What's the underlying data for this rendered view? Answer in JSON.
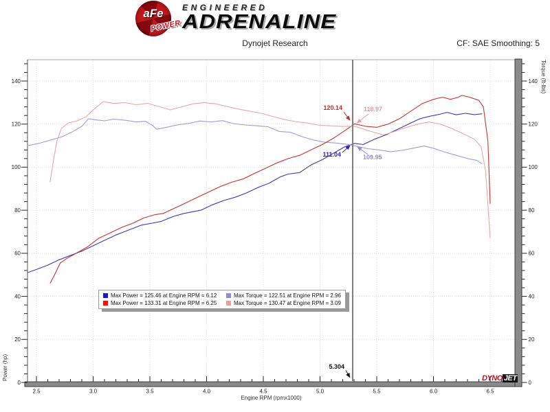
{
  "header": {
    "brand": {
      "afe": "aFe",
      "power": "POWER",
      "engineered": "ENGINEERED",
      "adrenaline": "ADRENALINE"
    },
    "title": "Dynojet Research",
    "correction_note": "CF: SAE Smoothing: 5"
  },
  "legend": {
    "items": [
      {
        "color": "#1818cf",
        "label": "Max Power = 125.46 at Engine RPM = 6.12"
      },
      {
        "color": "#8c8ce0",
        "label": "Max Torque = 122.51 at Engine RPM = 2.96"
      },
      {
        "color": "#e01818",
        "label": "Max Power = 133.31 at Engine RPM = 6.25"
      },
      {
        "color": "#f09c9c",
        "label": "Max Torque = 130.47 at Engine RPM = 3.09"
      }
    ]
  },
  "annotations": {
    "power2_value": "120.14",
    "torque2_value": "118.97",
    "power1_value": "111.04",
    "torque1_value": "109.95",
    "cursor_rpm": "5.304"
  },
  "watermark": {
    "dyno": "DYNO",
    "jet": "JET"
  },
  "chart_data": {
    "type": "line",
    "title": "Dynojet Research",
    "xlabel": "Engine RPM (rpmx1000)",
    "ylabel_left": "Power (hp)",
    "ylabel_right": "Torque (ft-lbs)",
    "xlim": [
      2.42,
      6.69
    ],
    "ylim": [
      0,
      150
    ],
    "x_ticks": [
      "2.5",
      "3.0",
      "3.5",
      "4.0",
      "4.5",
      "5.0",
      "5.5",
      "6.0",
      "6.5"
    ],
    "y_ticks": [
      "0",
      "20",
      "40",
      "60",
      "80",
      "100",
      "120",
      "140"
    ],
    "grid": "dotted",
    "cursor": {
      "rpm": 5.304,
      "power1": 111.04,
      "power2": 120.14,
      "torque1": 109.95,
      "torque2": 118.97
    },
    "series": [
      {
        "name": "power-run-1",
        "color": "#3939b8",
        "points": [
          [
            2.42,
            51
          ],
          [
            2.5,
            52.5
          ],
          [
            2.6,
            54.5
          ],
          [
            2.7,
            57
          ],
          [
            2.8,
            59
          ],
          [
            2.9,
            61
          ],
          [
            3.0,
            63.5
          ],
          [
            3.1,
            66
          ],
          [
            3.2,
            68.5
          ],
          [
            3.3,
            70.5
          ],
          [
            3.42,
            73
          ],
          [
            3.52,
            74
          ],
          [
            3.6,
            74.8
          ],
          [
            3.7,
            77
          ],
          [
            3.8,
            78.5
          ],
          [
            3.88,
            79.3
          ],
          [
            3.95,
            80
          ],
          [
            4.05,
            82.5
          ],
          [
            4.15,
            84.5
          ],
          [
            4.25,
            86
          ],
          [
            4.35,
            88
          ],
          [
            4.45,
            90.5
          ],
          [
            4.55,
            92.5
          ],
          [
            4.65,
            95.5
          ],
          [
            4.72,
            96.8
          ],
          [
            4.82,
            97.5
          ],
          [
            4.92,
            101
          ],
          [
            5.02,
            103.5
          ],
          [
            5.12,
            106.5
          ],
          [
            5.22,
            109.5
          ],
          [
            5.304,
            111.04
          ],
          [
            5.38,
            110.5
          ],
          [
            5.48,
            113
          ],
          [
            5.58,
            115
          ],
          [
            5.68,
            117.5
          ],
          [
            5.78,
            120
          ],
          [
            5.88,
            122.5
          ],
          [
            5.98,
            123.8
          ],
          [
            6.05,
            124.5
          ],
          [
            6.12,
            125.46
          ],
          [
            6.2,
            124.3
          ],
          [
            6.28,
            125
          ],
          [
            6.36,
            124.4
          ],
          [
            6.43,
            124.8
          ]
        ]
      },
      {
        "name": "torque-run-1",
        "color": "#9c9cdc",
        "points": [
          [
            2.42,
            110
          ],
          [
            2.52,
            111
          ],
          [
            2.62,
            112.5
          ],
          [
            2.72,
            114
          ],
          [
            2.82,
            116.5
          ],
          [
            2.9,
            119
          ],
          [
            2.96,
            122.5
          ],
          [
            3.02,
            122
          ],
          [
            3.1,
            121.5
          ],
          [
            3.18,
            122.3
          ],
          [
            3.28,
            121.8
          ],
          [
            3.38,
            121
          ],
          [
            3.46,
            121.3
          ],
          [
            3.52,
            119.5
          ],
          [
            3.56,
            117.6
          ],
          [
            3.64,
            118.4
          ],
          [
            3.74,
            119.6
          ],
          [
            3.84,
            120.3
          ],
          [
            3.94,
            121.4
          ],
          [
            4.04,
            121
          ],
          [
            4.14,
            121.6
          ],
          [
            4.24,
            120.2
          ],
          [
            4.34,
            119.6
          ],
          [
            4.44,
            119.2
          ],
          [
            4.54,
            118.8
          ],
          [
            4.64,
            116.6
          ],
          [
            4.74,
            116.2
          ],
          [
            4.84,
            114.2
          ],
          [
            4.94,
            112.6
          ],
          [
            5.04,
            111.6
          ],
          [
            5.14,
            111.2
          ],
          [
            5.24,
            110.6
          ],
          [
            5.304,
            109.95
          ],
          [
            5.42,
            108.6
          ],
          [
            5.52,
            108
          ],
          [
            5.62,
            107.2
          ],
          [
            5.72,
            107.8
          ],
          [
            5.82,
            108.8
          ],
          [
            5.92,
            109.8
          ],
          [
            6.0,
            108.8
          ],
          [
            6.1,
            107
          ],
          [
            6.2,
            105.5
          ],
          [
            6.3,
            104
          ],
          [
            6.38,
            103.2
          ],
          [
            6.43,
            101.5
          ]
        ]
      },
      {
        "name": "power-run-2",
        "color": "#c83232",
        "points": [
          [
            2.62,
            46
          ],
          [
            2.66,
            50
          ],
          [
            2.71,
            55.5
          ],
          [
            2.78,
            58
          ],
          [
            2.85,
            60
          ],
          [
            2.95,
            63
          ],
          [
            3.05,
            67
          ],
          [
            3.15,
            69.5
          ],
          [
            3.25,
            72
          ],
          [
            3.35,
            74
          ],
          [
            3.45,
            76.5
          ],
          [
            3.55,
            78
          ],
          [
            3.62,
            78.5
          ],
          [
            3.72,
            81
          ],
          [
            3.82,
            83.5
          ],
          [
            3.92,
            86
          ],
          [
            4.02,
            88.5
          ],
          [
            4.12,
            91
          ],
          [
            4.22,
            93
          ],
          [
            4.32,
            94.5
          ],
          [
            4.42,
            97
          ],
          [
            4.52,
            99.5
          ],
          [
            4.62,
            102
          ],
          [
            4.72,
            104
          ],
          [
            4.82,
            105.5
          ],
          [
            4.92,
            108
          ],
          [
            5.02,
            110.5
          ],
          [
            5.12,
            113.5
          ],
          [
            5.22,
            117
          ],
          [
            5.304,
            120.14
          ],
          [
            5.4,
            119
          ],
          [
            5.5,
            118.5
          ],
          [
            5.6,
            120
          ],
          [
            5.7,
            122.5
          ],
          [
            5.8,
            126
          ],
          [
            5.9,
            129.5
          ],
          [
            6.0,
            131.5
          ],
          [
            6.08,
            132.5
          ],
          [
            6.15,
            131.5
          ],
          [
            6.22,
            132.5
          ],
          [
            6.25,
            133.31
          ],
          [
            6.32,
            132.5
          ],
          [
            6.4,
            131
          ],
          [
            6.44,
            128
          ],
          [
            6.48,
            112
          ],
          [
            6.5,
            83
          ]
        ]
      },
      {
        "name": "torque-run-2",
        "color": "#eda6a6",
        "points": [
          [
            2.62,
            93
          ],
          [
            2.65,
            103
          ],
          [
            2.68,
            112
          ],
          [
            2.72,
            118
          ],
          [
            2.78,
            120.5
          ],
          [
            2.86,
            121.5
          ],
          [
            2.94,
            123.5
          ],
          [
            3.02,
            127.5
          ],
          [
            3.09,
            130.47
          ],
          [
            3.18,
            129.6
          ],
          [
            3.28,
            130
          ],
          [
            3.38,
            129
          ],
          [
            3.48,
            129.6
          ],
          [
            3.58,
            128.2
          ],
          [
            3.68,
            126.6
          ],
          [
            3.78,
            128
          ],
          [
            3.88,
            129.4
          ],
          [
            3.98,
            130
          ],
          [
            4.08,
            129.4
          ],
          [
            4.18,
            128.2
          ],
          [
            4.28,
            127
          ],
          [
            4.38,
            126
          ],
          [
            4.48,
            125
          ],
          [
            4.58,
            123.6
          ],
          [
            4.68,
            122.2
          ],
          [
            4.78,
            121.2
          ],
          [
            4.88,
            120.6
          ],
          [
            4.98,
            119.6
          ],
          [
            5.08,
            119.2
          ],
          [
            5.18,
            119
          ],
          [
            5.304,
            118.97
          ],
          [
            5.4,
            117.4
          ],
          [
            5.5,
            115.8
          ],
          [
            5.56,
            115
          ],
          [
            5.66,
            116.6
          ],
          [
            5.76,
            118.4
          ],
          [
            5.86,
            120
          ],
          [
            5.96,
            121
          ],
          [
            6.06,
            120
          ],
          [
            6.16,
            118
          ],
          [
            6.26,
            115.6
          ],
          [
            6.36,
            113
          ],
          [
            6.42,
            109.5
          ],
          [
            6.46,
            98
          ],
          [
            6.5,
            67
          ]
        ]
      }
    ]
  }
}
